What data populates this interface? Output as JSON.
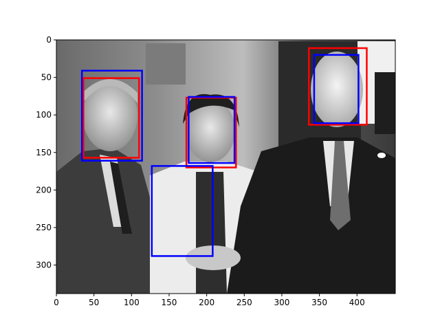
{
  "figure": {
    "image_extent": {
      "x": [
        0,
        451
      ],
      "y": [
        0,
        338
      ]
    },
    "x_ticks": [
      0,
      50,
      100,
      150,
      200,
      250,
      300,
      350,
      400
    ],
    "y_ticks": [
      0,
      50,
      100,
      150,
      200,
      250,
      300
    ],
    "colors": {
      "blue": "#0000ff",
      "red": "#ff0000",
      "axes": "#000000"
    },
    "boxes": [
      {
        "id": "red-face-1",
        "color": "red",
        "x0": 36,
        "y0": 51,
        "x1": 110,
        "y1": 157
      },
      {
        "id": "blue-face-1",
        "color": "blue",
        "x0": 34,
        "y0": 41,
        "x1": 114,
        "y1": 161
      },
      {
        "id": "red-face-2",
        "color": "red",
        "x0": 173,
        "y0": 77,
        "x1": 239,
        "y1": 170
      },
      {
        "id": "blue-face-2",
        "color": "blue",
        "x0": 176,
        "y0": 76,
        "x1": 237,
        "y1": 164
      },
      {
        "id": "blue-hands",
        "color": "blue",
        "x0": 127,
        "y0": 168,
        "x1": 208,
        "y1": 288
      },
      {
        "id": "red-face-3",
        "color": "red",
        "x0": 336,
        "y0": 11,
        "x1": 413,
        "y1": 113
      },
      {
        "id": "blue-face-3",
        "color": "blue",
        "x0": 343,
        "y0": 20,
        "x1": 402,
        "y1": 111
      }
    ]
  }
}
